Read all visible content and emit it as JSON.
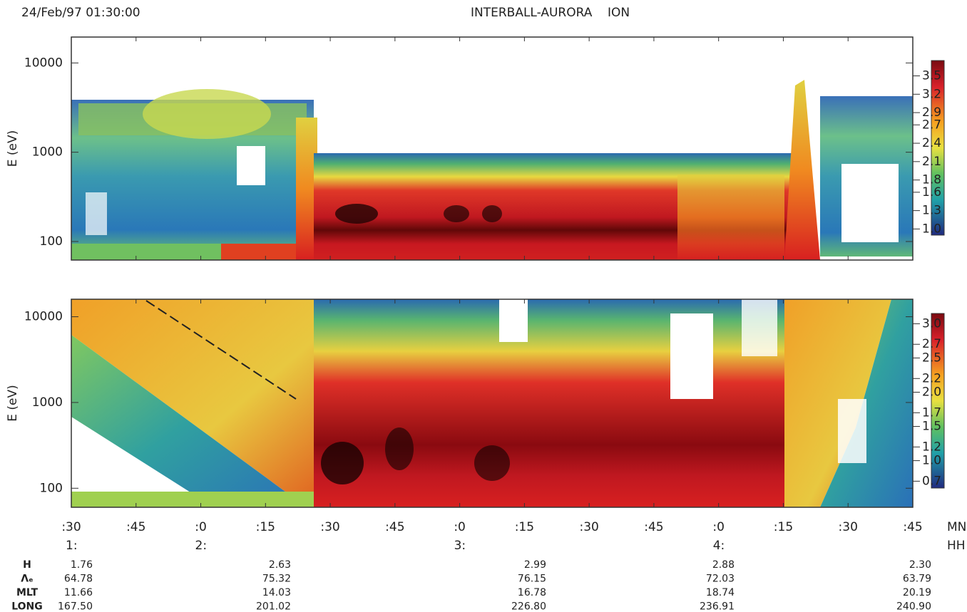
{
  "header": {
    "datetime": "24/Feb/97 01:30:00",
    "title": "INTERBALL-AURORA    ION"
  },
  "chart_data": [
    {
      "type": "spectrogram",
      "ylabel": "E (eV)",
      "yscale": "log",
      "ylim": [
        62,
        19500
      ],
      "yticks": [
        100,
        1000,
        10000
      ],
      "colorbar": {
        "lim": [
          0.9,
          3.75
        ],
        "ticks": [
          3.5,
          3.2,
          2.9,
          2.7,
          2.4,
          2.1,
          1.8,
          1.6,
          1.3,
          {
            "value": 1,
            "label": "1.0"
          }
        ]
      }
    },
    {
      "type": "spectrogram",
      "ylabel": "E (eV)",
      "yscale": "log",
      "ylim": [
        60,
        16000
      ],
      "yticks": [
        100,
        1000,
        10000
      ],
      "colorbar": {
        "lim": [
          0.6,
          3.15
        ],
        "ticks": [
          {
            "value": 3,
            "label": "3.0"
          },
          2.7,
          2.5,
          2.2,
          {
            "value": 2,
            "label": "2.0"
          },
          1.7,
          1.5,
          1.2,
          {
            "value": 1,
            "label": "1.0"
          },
          0.7
        ]
      }
    }
  ],
  "time_axis": {
    "xlim": [
      90,
      285
    ],
    "minute_ticks": [
      {
        "value": 90,
        "label": ":30"
      },
      {
        "value": 105,
        "label": ":45"
      },
      {
        "value": 120,
        "label": ":0"
      },
      {
        "value": 135,
        "label": ":15"
      },
      {
        "value": 150,
        "label": ":30"
      },
      {
        "value": 165,
        "label": ":45"
      },
      {
        "value": 180,
        "label": ":0"
      },
      {
        "value": 195,
        "label": ":15"
      },
      {
        "value": 210,
        "label": ":30"
      },
      {
        "value": 225,
        "label": ":45"
      },
      {
        "value": 240,
        "label": ":0"
      },
      {
        "value": 255,
        "label": ":15"
      },
      {
        "value": 270,
        "label": ":30"
      },
      {
        "value": 285,
        "label": ":45"
      }
    ],
    "hour_ticks": [
      {
        "value": 90,
        "label": "1:"
      },
      {
        "value": 120,
        "label": "2:"
      },
      {
        "value": 180,
        "label": "3:"
      },
      {
        "value": 240,
        "label": "4:"
      }
    ],
    "minute_unit": "MN",
    "hour_unit": "HH"
  },
  "ephemeris": {
    "rows": [
      {
        "label": "H",
        "values": [
          "1.76",
          "2.63",
          "2.99",
          "2.88",
          "2.30"
        ]
      },
      {
        "label": "Λₑ",
        "values": [
          "64.78",
          "75.32",
          "76.15",
          "72.03",
          "63.79"
        ]
      },
      {
        "label": "MLT",
        "values": [
          "11.66",
          "14.03",
          "16.78",
          "18.74",
          "20.19"
        ]
      },
      {
        "label": "LONG",
        "values": [
          "167.50",
          "201.02",
          "226.80",
          "236.91",
          "240.90"
        ]
      }
    ]
  }
}
